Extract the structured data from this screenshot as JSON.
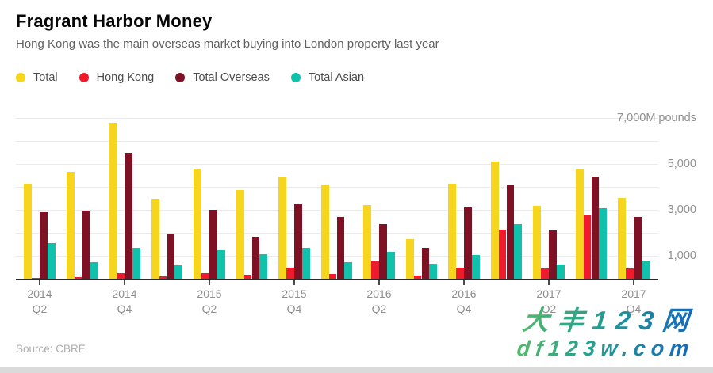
{
  "header": {
    "title": "Fragrant Harbor Money",
    "subtitle": "Hong Kong was the main overseas market buying into London property last year"
  },
  "source": "Source: CBRE",
  "watermark": {
    "line1": "大丰123网",
    "line2": "df123w.com",
    "color_start": "#54b96a",
    "color_end": "#1566bf"
  },
  "colors": {
    "total": "#f7d51d",
    "hong_kong": "#ef1b2d",
    "total_overseas": "#7e1124",
    "total_asian": "#10c1ac",
    "gridline": "#ebebeb",
    "axis": "#2a2a2a",
    "tick_label": "#8e8e8e"
  },
  "chart_data": {
    "type": "bar",
    "title": "Fragrant Harbor Money",
    "subtitle": "Hong Kong was the main overseas market buying into London property last year",
    "unit": "M pounds",
    "grid": true,
    "legend_position": "top-left",
    "ylim": [
      0,
      7000
    ],
    "gridline_values": [
      1000,
      2000,
      3000,
      4000,
      5000,
      6000,
      7000
    ],
    "y_ticks": [
      {
        "value": 1000,
        "label": "1,000"
      },
      {
        "value": 3000,
        "label": "3,000"
      },
      {
        "value": 5000,
        "label": "5,000"
      },
      {
        "value": 7000,
        "label": "7,000M pounds"
      }
    ],
    "categories": [
      "2014 Q2",
      "2014 Q3",
      "2014 Q4",
      "2015 Q1",
      "2015 Q2",
      "2015 Q3",
      "2015 Q4",
      "2016 Q1",
      "2016 Q2",
      "2016 Q3",
      "2016 Q4",
      "2017 Q1",
      "2017 Q2",
      "2017 Q3",
      "2017 Q4"
    ],
    "x_ticks": [
      {
        "index": 0,
        "line1": "2014",
        "line2": "Q2"
      },
      {
        "index": 2,
        "line1": "2014",
        "line2": "Q4"
      },
      {
        "index": 4,
        "line1": "2015",
        "line2": "Q2"
      },
      {
        "index": 6,
        "line1": "2015",
        "line2": "Q4"
      },
      {
        "index": 8,
        "line1": "2016",
        "line2": "Q2"
      },
      {
        "index": 10,
        "line1": "2016",
        "line2": "Q4"
      },
      {
        "index": 12,
        "line1": "2017",
        "line2": "Q2"
      },
      {
        "index": 14,
        "line1": "2017",
        "line2": "Q4"
      }
    ],
    "series": [
      {
        "name": "Total",
        "color": "#f7d51d",
        "values": [
          4150,
          4650,
          6800,
          3480,
          4800,
          3860,
          4440,
          4090,
          3200,
          1710,
          4130,
          5100,
          3170,
          4750,
          3520
        ]
      },
      {
        "name": "Hong Kong",
        "color": "#ef1b2d",
        "values": [
          50,
          60,
          250,
          100,
          240,
          160,
          500,
          210,
          760,
          130,
          470,
          2140,
          440,
          2750,
          440
        ]
      },
      {
        "name": "Total Overseas",
        "color": "#7e1124",
        "values": [
          2900,
          2950,
          5500,
          1930,
          3000,
          1820,
          3250,
          2680,
          2370,
          1360,
          3110,
          4110,
          2110,
          4460,
          2690
        ]
      },
      {
        "name": "Total Asian",
        "color": "#10c1ac",
        "values": [
          1550,
          720,
          1330,
          590,
          1240,
          1080,
          1360,
          730,
          1180,
          640,
          1040,
          2390,
          610,
          3060,
          780
        ]
      }
    ]
  }
}
